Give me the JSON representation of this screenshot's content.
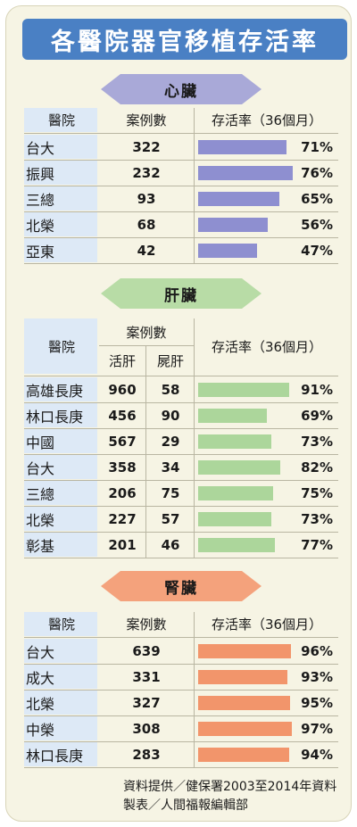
{
  "title": "各醫院器官移植存活率",
  "colors": {
    "title_bg": "#4a80c4",
    "heart_bar": "#8e8fd0",
    "heart_banner": "#a9a9d8",
    "liver_bar": "#acd69b",
    "liver_banner": "#b8dca6",
    "kidney_bar": "#f2956b",
    "kidney_banner": "#f4a27c",
    "hospital_cell": "#dde9f6"
  },
  "heart": {
    "banner": "心臟",
    "headers": {
      "hospital": "醫院",
      "cases": "案例數",
      "survival": "存活率（36個月）"
    }
  },
  "liver": {
    "banner": "肝臟",
    "headers": {
      "hospital": "醫院",
      "cases": "案例數",
      "living": "活肝",
      "cadaver": "屍肝",
      "survival": "存活率（36個月）"
    }
  },
  "kidney": {
    "banner": "腎臟",
    "headers": {
      "hospital": "醫院",
      "cases": "案例數",
      "survival": "存活率（36個月）"
    }
  },
  "chart_data": [
    {
      "type": "bar",
      "title": "心臟",
      "categories": [
        "台大",
        "振興",
        "三總",
        "北榮",
        "亞東"
      ],
      "cases": [
        322,
        232,
        93,
        68,
        42
      ],
      "values": [
        71,
        76,
        65,
        56,
        47
      ],
      "value_labels": [
        "71%",
        "76%",
        "65%",
        "56%",
        "47%"
      ],
      "ylabel": "存活率（36個月）",
      "ylim": [
        0,
        100
      ]
    },
    {
      "type": "bar",
      "title": "肝臟",
      "categories": [
        "高雄長庚",
        "林口長庚",
        "中國",
        "台大",
        "三總",
        "北榮",
        "彰基"
      ],
      "living": [
        960,
        456,
        567,
        358,
        206,
        227,
        201
      ],
      "cadaver": [
        58,
        90,
        29,
        34,
        75,
        57,
        46
      ],
      "values": [
        91,
        69,
        73,
        82,
        75,
        73,
        77
      ],
      "value_labels": [
        "91%",
        "69%",
        "73%",
        "82%",
        "75%",
        "73%",
        "77%"
      ],
      "ylabel": "存活率（36個月）",
      "ylim": [
        0,
        100
      ]
    },
    {
      "type": "bar",
      "title": "腎臟",
      "categories": [
        "台大",
        "成大",
        "北榮",
        "中榮",
        "林口長庚"
      ],
      "cases": [
        639,
        331,
        327,
        308,
        283
      ],
      "values": [
        96,
        93,
        95,
        97,
        94
      ],
      "value_labels": [
        "96%",
        "93%",
        "95%",
        "97%",
        "94%"
      ],
      "ylabel": "存活率（36個月）",
      "ylim": [
        0,
        100
      ]
    }
  ],
  "footer": {
    "line1": "資料提供／健保署2003至2014年資料",
    "line2": "製表／人間福報編輯部"
  }
}
